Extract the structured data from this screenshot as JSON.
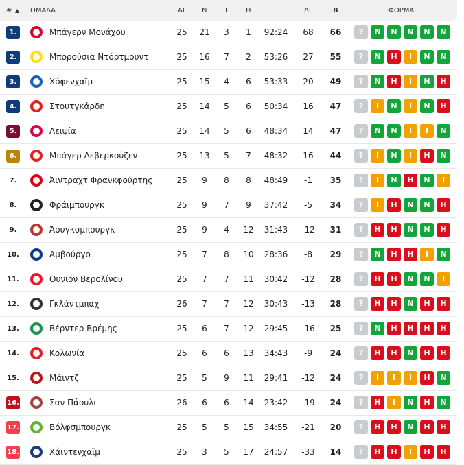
{
  "header": {
    "rank": "#",
    "sort": "▲",
    "team": "ΟΜΑΔΑ",
    "played": "ΑΓ",
    "wins": "Ν",
    "draws": "Ι",
    "losses": "Η",
    "goals": "Γ",
    "diff": "ΔΓ",
    "points": "Β",
    "form": "ΦΟΡΜΑ"
  },
  "colors": {
    "cl": "#0e3c78",
    "el": "#7a0f2f",
    "ecl": "#b8860b",
    "playoff": "#c0101c",
    "releg": "#f0404e",
    "N": "#12a53a",
    "H": "#d9101c",
    "I": "#f2a200",
    "?": "#c8cccf"
  },
  "rows": [
    {
      "rank": "1.",
      "zone": "cl",
      "team": "Μπάγερν Μονάχου",
      "logo": "#dc052d",
      "p": "25",
      "w": "21",
      "d": "3",
      "l": "1",
      "g": "92:24",
      "gd": "68",
      "pts": "66",
      "form": [
        "?",
        "N",
        "N",
        "N",
        "N",
        "N"
      ]
    },
    {
      "rank": "2.",
      "zone": "cl",
      "team": "Μπορούσια Ντόρτμουντ",
      "logo": "#fde100",
      "p": "25",
      "w": "16",
      "d": "7",
      "l": "2",
      "g": "53:26",
      "gd": "27",
      "pts": "55",
      "form": [
        "?",
        "N",
        "H",
        "I",
        "N",
        "N"
      ]
    },
    {
      "rank": "3.",
      "zone": "cl",
      "team": "Χόφενχαϊμ",
      "logo": "#1961b5",
      "p": "25",
      "w": "15",
      "d": "4",
      "l": "6",
      "g": "53:33",
      "gd": "20",
      "pts": "49",
      "form": [
        "?",
        "N",
        "H",
        "I",
        "N",
        "H"
      ]
    },
    {
      "rank": "4.",
      "zone": "cl",
      "team": "Στουτγκάρδη",
      "logo": "#e32219",
      "p": "25",
      "w": "14",
      "d": "5",
      "l": "6",
      "g": "50:34",
      "gd": "16",
      "pts": "47",
      "form": [
        "?",
        "I",
        "N",
        "I",
        "N",
        "H"
      ]
    },
    {
      "rank": "5.",
      "zone": "el",
      "team": "Λειψία",
      "logo": "#dd0741",
      "p": "25",
      "w": "14",
      "d": "5",
      "l": "6",
      "g": "48:34",
      "gd": "14",
      "pts": "47",
      "form": [
        "?",
        "N",
        "N",
        "I",
        "I",
        "N"
      ]
    },
    {
      "rank": "6.",
      "zone": "ecl",
      "team": "Μπάγερ Λεβερκούζεν",
      "logo": "#e32221",
      "p": "25",
      "w": "13",
      "d": "5",
      "l": "7",
      "g": "48:32",
      "gd": "16",
      "pts": "44",
      "form": [
        "?",
        "I",
        "N",
        "I",
        "H",
        "N"
      ]
    },
    {
      "rank": "7.",
      "zone": "",
      "team": "Άιντραχτ Φρανκφούρτης",
      "logo": "#e1000f",
      "p": "25",
      "w": "9",
      "d": "8",
      "l": "8",
      "g": "48:49",
      "gd": "-1",
      "pts": "35",
      "form": [
        "?",
        "I",
        "N",
        "H",
        "N",
        "I"
      ]
    },
    {
      "rank": "8.",
      "zone": "",
      "team": "Φράιμπουργκ",
      "logo": "#222222",
      "p": "25",
      "w": "9",
      "d": "7",
      "l": "9",
      "g": "37:42",
      "gd": "-5",
      "pts": "34",
      "form": [
        "?",
        "I",
        "H",
        "N",
        "N",
        "H"
      ]
    },
    {
      "rank": "9.",
      "zone": "",
      "team": "Άουγκσμπουργκ",
      "logo": "#ba3733",
      "p": "25",
      "w": "9",
      "d": "4",
      "l": "12",
      "g": "31:43",
      "gd": "-12",
      "pts": "31",
      "form": [
        "?",
        "H",
        "H",
        "N",
        "N",
        "H"
      ]
    },
    {
      "rank": "10.",
      "zone": "",
      "team": "Αμβούργο",
      "logo": "#0a3f86",
      "p": "25",
      "w": "7",
      "d": "8",
      "l": "10",
      "g": "28:36",
      "gd": "-8",
      "pts": "29",
      "form": [
        "?",
        "N",
        "H",
        "H",
        "I",
        "N"
      ]
    },
    {
      "rank": "11.",
      "zone": "",
      "team": "Ουνιόν Βερολίνου",
      "logo": "#eb1923",
      "p": "25",
      "w": "7",
      "d": "7",
      "l": "11",
      "g": "30:42",
      "gd": "-12",
      "pts": "28",
      "form": [
        "?",
        "H",
        "H",
        "N",
        "N",
        "I"
      ]
    },
    {
      "rank": "12.",
      "zone": "",
      "team": "Γκλάντμπαχ",
      "logo": "#333333",
      "p": "26",
      "w": "7",
      "d": "7",
      "l": "12",
      "g": "30:43",
      "gd": "-13",
      "pts": "28",
      "form": [
        "?",
        "H",
        "H",
        "N",
        "H",
        "H"
      ]
    },
    {
      "rank": "13.",
      "zone": "",
      "team": "Βέρντερ Βρέμης",
      "logo": "#1d9053",
      "p": "25",
      "w": "6",
      "d": "7",
      "l": "12",
      "g": "29:45",
      "gd": "-16",
      "pts": "25",
      "form": [
        "?",
        "N",
        "H",
        "H",
        "H",
        "H"
      ]
    },
    {
      "rank": "14.",
      "zone": "",
      "team": "Κολωνία",
      "logo": "#ed1c24",
      "p": "25",
      "w": "6",
      "d": "6",
      "l": "13",
      "g": "34:43",
      "gd": "-9",
      "pts": "24",
      "form": [
        "?",
        "H",
        "H",
        "N",
        "H",
        "H"
      ]
    },
    {
      "rank": "15.",
      "zone": "",
      "team": "Μάιντζ",
      "logo": "#c3141e",
      "p": "25",
      "w": "5",
      "d": "9",
      "l": "11",
      "g": "29:41",
      "gd": "-12",
      "pts": "24",
      "form": [
        "?",
        "I",
        "I",
        "I",
        "H",
        "N"
      ]
    },
    {
      "rank": "16.",
      "zone": "playoff",
      "team": "Σαν Πάουλι",
      "logo": "#a0463c",
      "p": "26",
      "w": "6",
      "d": "6",
      "l": "14",
      "g": "23:42",
      "gd": "-19",
      "pts": "24",
      "form": [
        "?",
        "H",
        "I",
        "N",
        "H",
        "N"
      ]
    },
    {
      "rank": "17.",
      "zone": "releg",
      "team": "Βόλφσμπουργκ",
      "logo": "#65b32e",
      "p": "25",
      "w": "5",
      "d": "5",
      "l": "15",
      "g": "34:55",
      "gd": "-21",
      "pts": "20",
      "form": [
        "?",
        "H",
        "H",
        "N",
        "H",
        "H"
      ]
    },
    {
      "rank": "18.",
      "zone": "releg",
      "team": "Χάιντενχαϊμ",
      "logo": "#1c3c7c",
      "p": "25",
      "w": "3",
      "d": "5",
      "l": "17",
      "g": "24:57",
      "gd": "-33",
      "pts": "14",
      "form": [
        "?",
        "H",
        "H",
        "I",
        "H",
        "H"
      ]
    }
  ]
}
